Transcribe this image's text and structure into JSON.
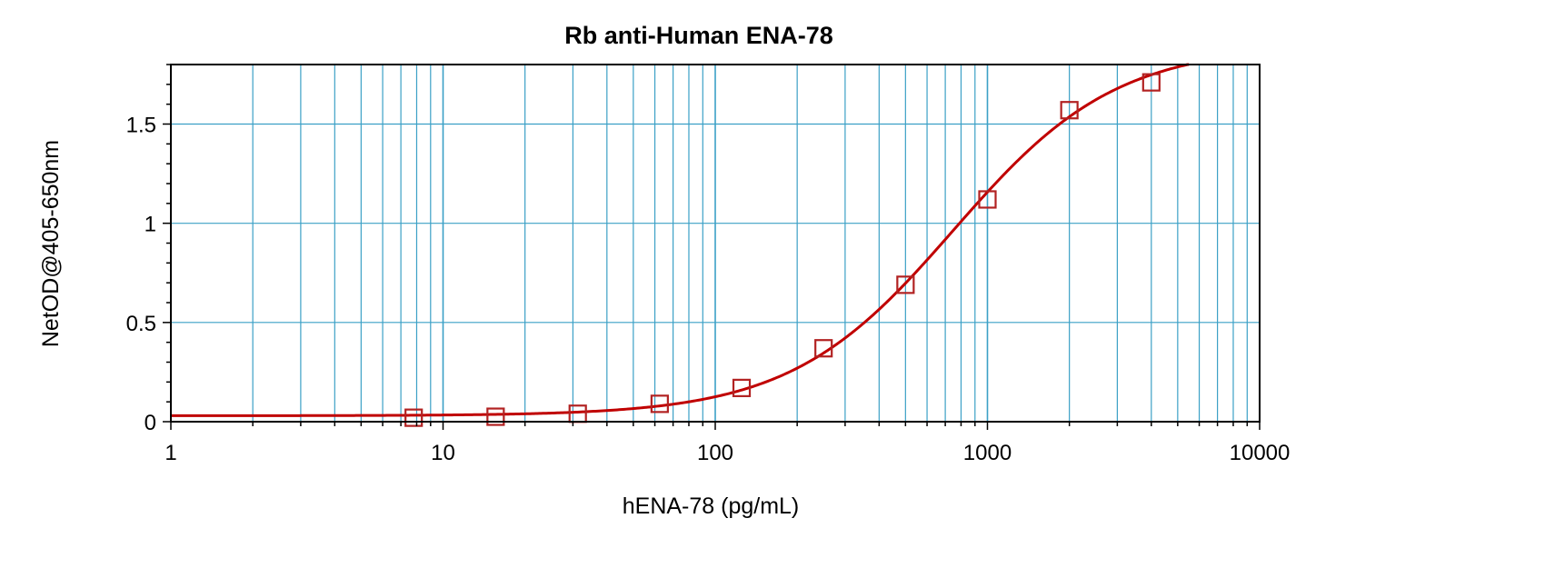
{
  "chart_data": {
    "type": "scatter",
    "title": "Rb anti-Human ENA-78",
    "xlabel": "hENA-78 (pg/mL)",
    "ylabel": "NetOD@405-650nm",
    "x_scale": "log",
    "xlim": [
      1,
      10000
    ],
    "ylim": [
      0,
      1.8
    ],
    "x_ticks": [
      1,
      10,
      100,
      1000,
      10000
    ],
    "x_tick_labels": [
      "1",
      "10",
      "100",
      "1000",
      "10000"
    ],
    "y_ticks": [
      0,
      0.5,
      1,
      1.5
    ],
    "y_tick_labels": [
      "0",
      "0.5",
      "1",
      "1.5"
    ],
    "grid": true,
    "legend": "none",
    "series": [
      {
        "marker": "open-square",
        "color": "#b22222",
        "x": [
          7.8,
          15.6,
          31.25,
          62.5,
          125,
          250,
          500,
          1000,
          2000,
          4000
        ],
        "y": [
          0.02,
          0.025,
          0.04,
          0.09,
          0.17,
          0.37,
          0.69,
          1.12,
          1.57,
          1.71
        ]
      }
    ],
    "fit_curve": {
      "type": "4PL",
      "color": "#c00000",
      "bottom": 0.03,
      "top": 1.9,
      "ec50": 750,
      "hill": 1.45
    },
    "colors": {
      "grid": "#3ba0c6",
      "axis": "#000000",
      "curve": "#c00000",
      "marker": "#b22222"
    }
  }
}
